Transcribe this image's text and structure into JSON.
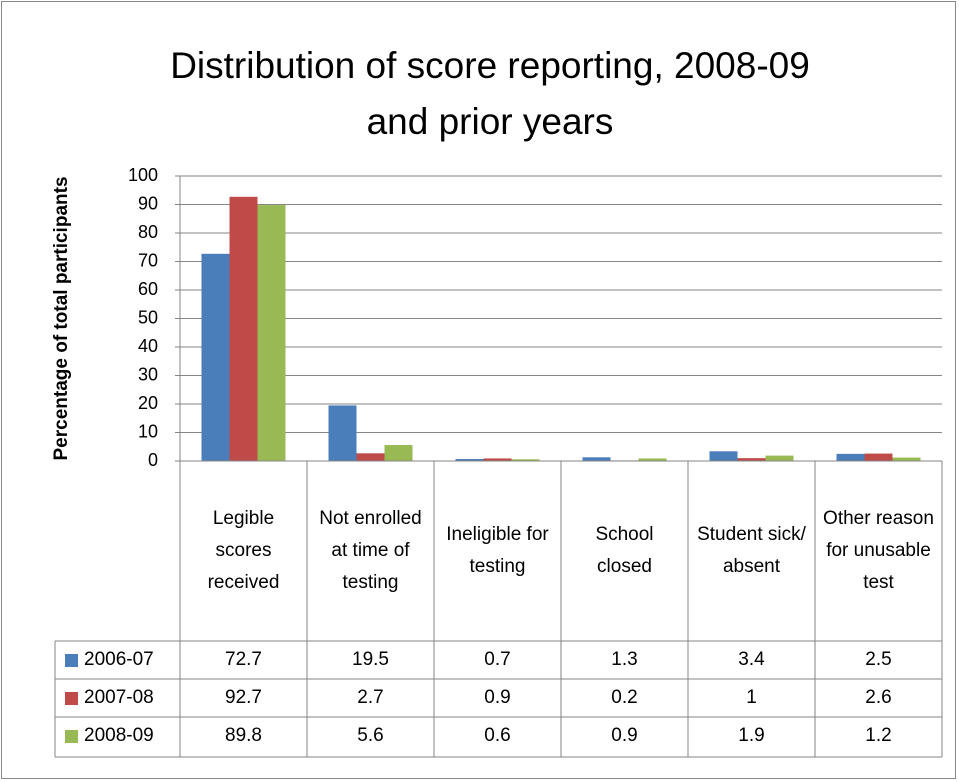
{
  "chart_data": {
    "type": "bar",
    "title": "Distribution of score reporting, 2008-09 and prior years",
    "y_label": "Percentage of total participants",
    "categories": [
      "Legible scores received",
      "Not enrolled at time of testing",
      "Ineligible for testing",
      "School closed",
      "Student sick/ absent",
      "Other reason for unusable test"
    ],
    "series": [
      {
        "name": "2006-07",
        "color": "#4a7ebb",
        "values": [
          72.7,
          19.5,
          0.7,
          1.3,
          3.4,
          2.5
        ]
      },
      {
        "name": "2007-08",
        "color": "#be4b48",
        "values": [
          92.7,
          2.7,
          0.9,
          0.2,
          1,
          2.6
        ]
      },
      {
        "name": "2008-09",
        "color": "#98b954",
        "values": [
          89.8,
          5.6,
          0.6,
          0.9,
          1.9,
          1.2
        ]
      }
    ],
    "ylim": [
      0,
      100
    ],
    "yticks": [
      0,
      10,
      20,
      30,
      40,
      50,
      60,
      70,
      80,
      90,
      100
    ],
    "grid": true
  }
}
